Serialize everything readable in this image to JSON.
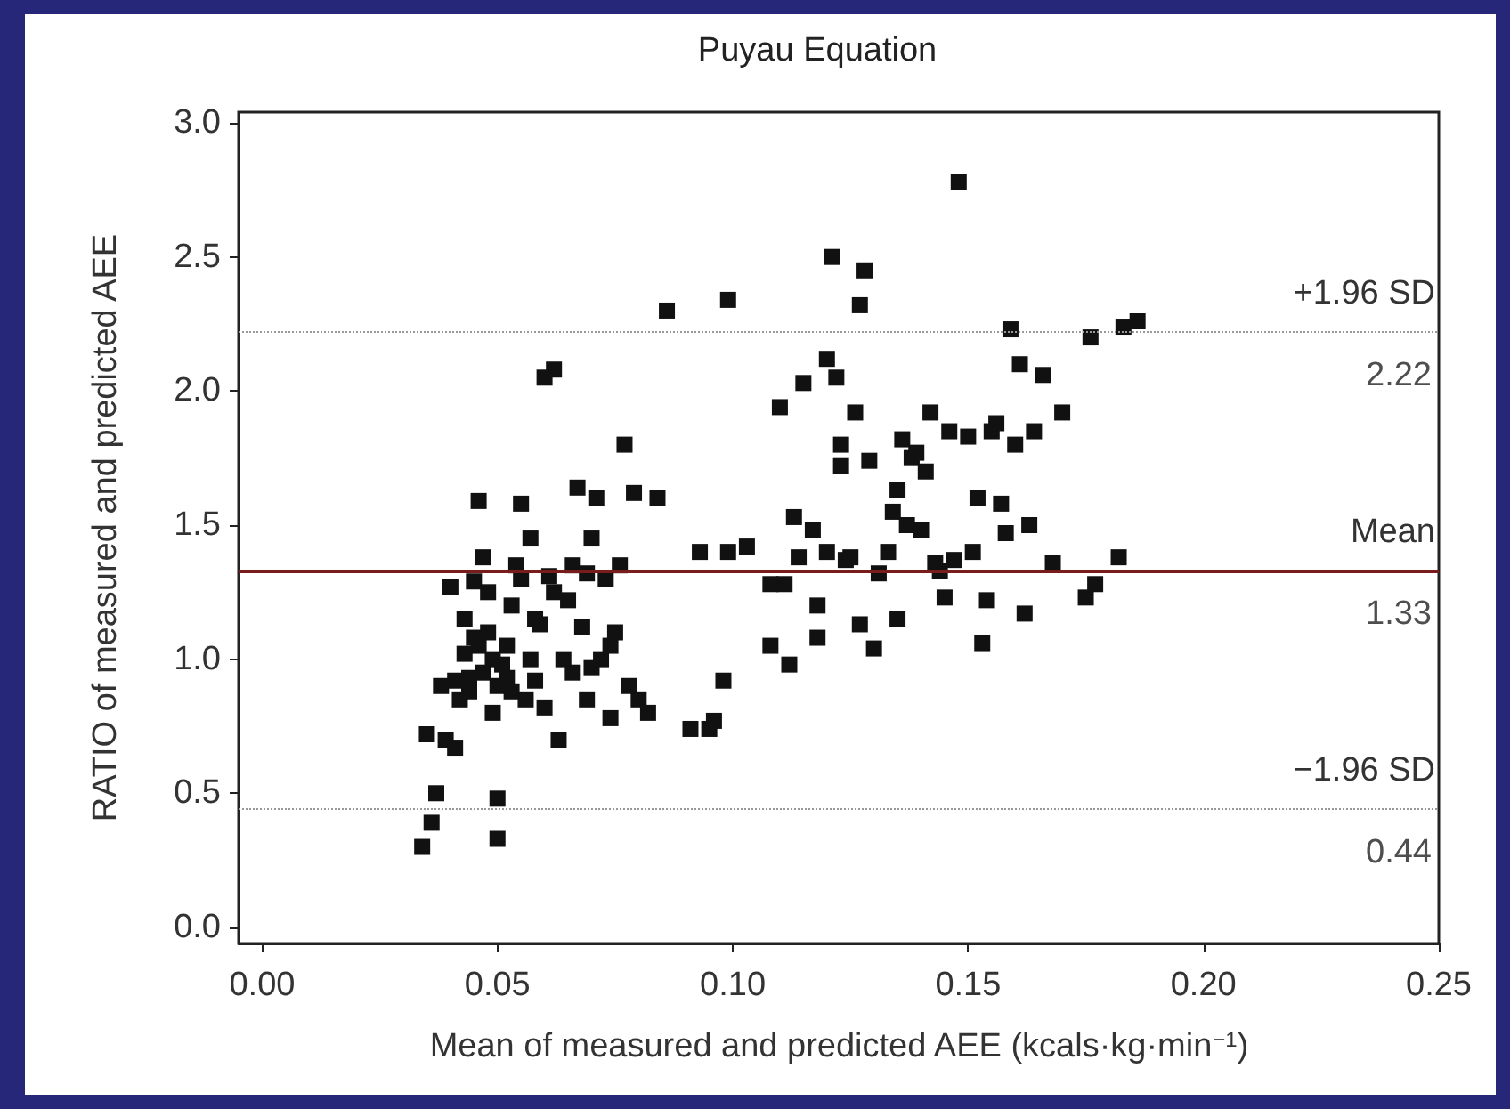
{
  "chart_data": {
    "type": "scatter",
    "title": "Puyau Equation",
    "xlabel": "Mean of measured and predicted AEE (kcals·kg·min$^{−1}$)",
    "ylabel": "RATIO of measured and predicted AEE",
    "marker": "square",
    "grid": false,
    "xlim": [
      -0.005,
      0.25
    ],
    "ylim": [
      -0.06,
      3.04
    ],
    "xticks": [
      {
        "value": 0,
        "label": "0.00"
      },
      {
        "value": 0.05,
        "label": "0.05"
      },
      {
        "value": 0.1,
        "label": "0.10"
      },
      {
        "value": 0.15,
        "label": "0.15"
      },
      {
        "value": 0.2,
        "label": "0.20"
      },
      {
        "value": 0.25,
        "label": "0.25"
      }
    ],
    "yticks": [
      {
        "value": 0,
        "label": "0.0"
      },
      {
        "value": 0.5,
        "label": "0.5"
      },
      {
        "value": 1,
        "label": "1.0"
      },
      {
        "value": 1.5,
        "label": "1.5"
      },
      {
        "value": 2,
        "label": "2.0"
      },
      {
        "value": 2.5,
        "label": "2.5"
      },
      {
        "value": 3,
        "label": "3.0"
      }
    ],
    "annotations": [
      {
        "text": "2.22",
        "y": 2.22
      },
      {
        "text": "1.33",
        "y": 1.33
      },
      {
        "text": "0.44",
        "y": 0.44
      }
    ],
    "ref_lines": [
      {
        "axis": "y",
        "value": 2.22,
        "label": "+1.96 SD",
        "color": "#999999",
        "line_style": "dotted"
      },
      {
        "axis": "y",
        "value": 1.33,
        "label": "Mean",
        "color": "#7a1c1c",
        "line_style": "solid"
      },
      {
        "axis": "y",
        "value": 0.44,
        "label": "−1.96 SD",
        "color": "#999999",
        "line_style": "dotted"
      }
    ],
    "series": [
      {
        "color": "#111111",
        "x": [
          0.034,
          0.036,
          0.035,
          0.037,
          0.038,
          0.039,
          0.04,
          0.041,
          0.042,
          0.043,
          0.044,
          0.045,
          0.046,
          0.047,
          0.048,
          0.049,
          0.05,
          0.05,
          0.051,
          0.052,
          0.053,
          0.054,
          0.055,
          0.056,
          0.057,
          0.058,
          0.059,
          0.06,
          0.061,
          0.062,
          0.063,
          0.064,
          0.065,
          0.066,
          0.067,
          0.068,
          0.069,
          0.07,
          0.071,
          0.072,
          0.073,
          0.074,
          0.075,
          0.076,
          0.077,
          0.078,
          0.079,
          0.08,
          0.082,
          0.084,
          0.044,
          0.046,
          0.047,
          0.049,
          0.05,
          0.052,
          0.045,
          0.048,
          0.055,
          0.058,
          0.062,
          0.066,
          0.07,
          0.074,
          0.06,
          0.043,
          0.041,
          0.057,
          0.069,
          0.053,
          0.086,
          0.091,
          0.093,
          0.095,
          0.096,
          0.098,
          0.099,
          0.099,
          0.103,
          0.108,
          0.108,
          0.11,
          0.111,
          0.112,
          0.113,
          0.115,
          0.117,
          0.118,
          0.12,
          0.12,
          0.121,
          0.122,
          0.123,
          0.123,
          0.124,
          0.125,
          0.126,
          0.127,
          0.127,
          0.128,
          0.129,
          0.13,
          0.131,
          0.133,
          0.134,
          0.135,
          0.136,
          0.137,
          0.138,
          0.139,
          0.14,
          0.141,
          0.142,
          0.143,
          0.144,
          0.145,
          0.146,
          0.147,
          0.148,
          0.15,
          0.151,
          0.152,
          0.153,
          0.154,
          0.155,
          0.156,
          0.157,
          0.158,
          0.159,
          0.16,
          0.161,
          0.162,
          0.163,
          0.164,
          0.166,
          0.168,
          0.17,
          0.175,
          0.176,
          0.177,
          0.182,
          0.183,
          0.186,
          0.114,
          0.118,
          0.135
        ],
        "values": [
          0.3,
          0.39,
          0.72,
          0.5,
          0.9,
          0.7,
          1.27,
          0.67,
          0.85,
          1.02,
          0.93,
          1.29,
          1.59,
          1.38,
          1.1,
          0.8,
          0.48,
          0.33,
          0.98,
          1.05,
          1.2,
          1.35,
          1.58,
          0.85,
          1.45,
          0.92,
          1.13,
          2.05,
          1.31,
          2.08,
          0.7,
          1.0,
          1.22,
          0.95,
          1.64,
          1.12,
          0.85,
          1.45,
          1.6,
          1.0,
          1.3,
          0.78,
          1.1,
          1.35,
          1.8,
          0.9,
          1.62,
          0.85,
          0.8,
          1.6,
          0.88,
          1.05,
          0.95,
          1.0,
          0.9,
          0.93,
          1.08,
          1.25,
          1.3,
          1.15,
          1.25,
          1.35,
          0.97,
          1.05,
          0.82,
          1.15,
          0.92,
          1.0,
          1.32,
          0.88,
          2.3,
          0.74,
          1.4,
          0.74,
          0.77,
          0.92,
          2.34,
          1.4,
          1.42,
          1.28,
          1.05,
          1.94,
          1.28,
          0.98,
          1.53,
          2.03,
          1.48,
          1.08,
          1.4,
          2.12,
          2.5,
          2.05,
          1.8,
          1.72,
          1.37,
          1.38,
          1.92,
          2.32,
          1.13,
          2.45,
          1.74,
          1.04,
          1.32,
          1.4,
          1.55,
          1.63,
          1.82,
          1.5,
          1.75,
          1.77,
          1.48,
          1.7,
          1.92,
          1.36,
          1.33,
          1.23,
          1.85,
          1.37,
          2.78,
          1.83,
          1.4,
          1.6,
          1.06,
          1.22,
          1.85,
          1.88,
          1.58,
          1.47,
          2.23,
          1.8,
          2.1,
          1.17,
          1.5,
          1.85,
          2.06,
          1.36,
          1.92,
          1.23,
          2.2,
          1.28,
          1.38,
          2.24,
          2.26,
          1.38,
          1.2,
          1.15
        ]
      }
    ]
  }
}
